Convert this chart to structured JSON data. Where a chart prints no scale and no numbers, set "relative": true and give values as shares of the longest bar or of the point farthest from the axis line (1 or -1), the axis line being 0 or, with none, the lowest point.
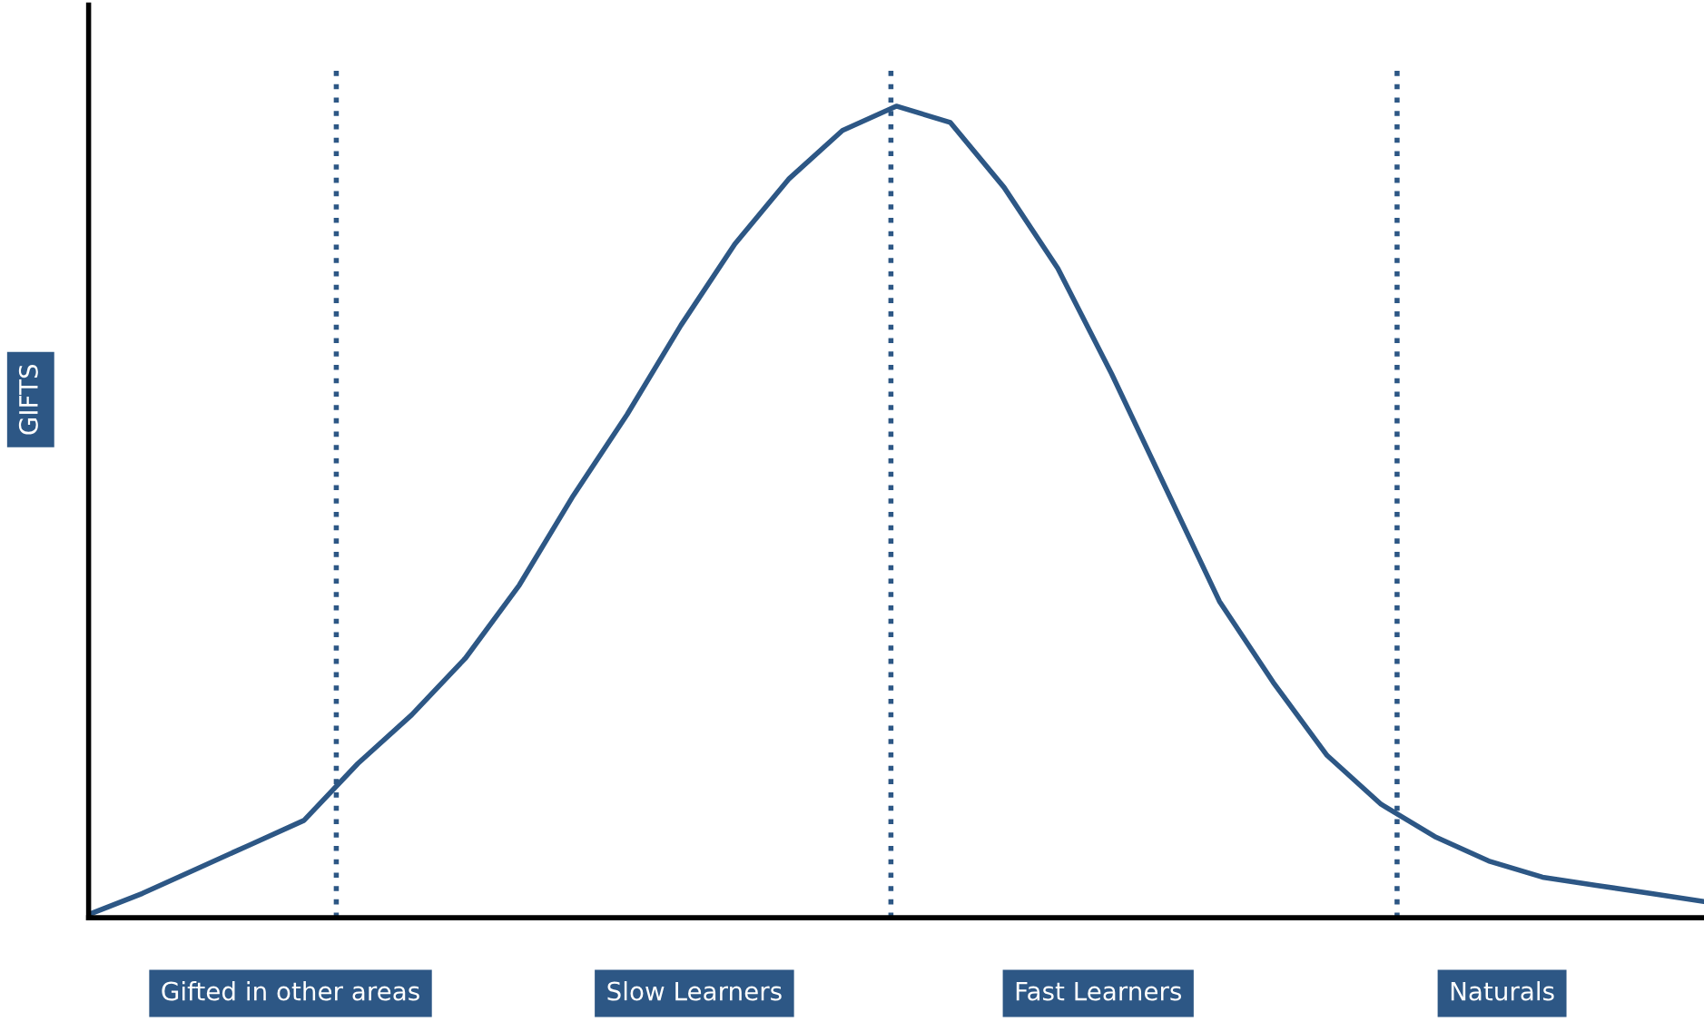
{
  "chart_data": {
    "type": "line",
    "relative": true,
    "ylabel": "GIFTS",
    "categories": [
      null,
      null,
      null,
      null,
      null,
      null,
      null,
      null,
      null,
      null,
      null,
      null,
      null,
      null,
      null,
      null,
      null,
      null,
      null,
      null,
      null,
      null,
      null,
      null,
      null,
      null,
      null,
      null,
      null,
      null,
      null
    ],
    "series": [
      {
        "color": "#2d5785",
        "values": [
          0.004,
          0.03,
          0.06,
          0.09,
          0.12,
          0.19,
          0.25,
          0.32,
          0.41,
          0.52,
          0.62,
          0.73,
          0.83,
          0.91,
          0.97,
          1.0,
          0.98,
          0.9,
          0.8,
          0.67,
          0.53,
          0.39,
          0.29,
          0.2,
          0.14,
          0.1,
          0.07,
          0.05,
          0.04,
          0.03,
          0.02
        ]
      }
    ],
    "annotations": [
      "Gifted in other areas",
      "Slow Learners",
      "Fast Learners",
      "Naturals"
    ],
    "grid": false,
    "legend": false,
    "marker": "none",
    "line_style": "solid"
  }
}
